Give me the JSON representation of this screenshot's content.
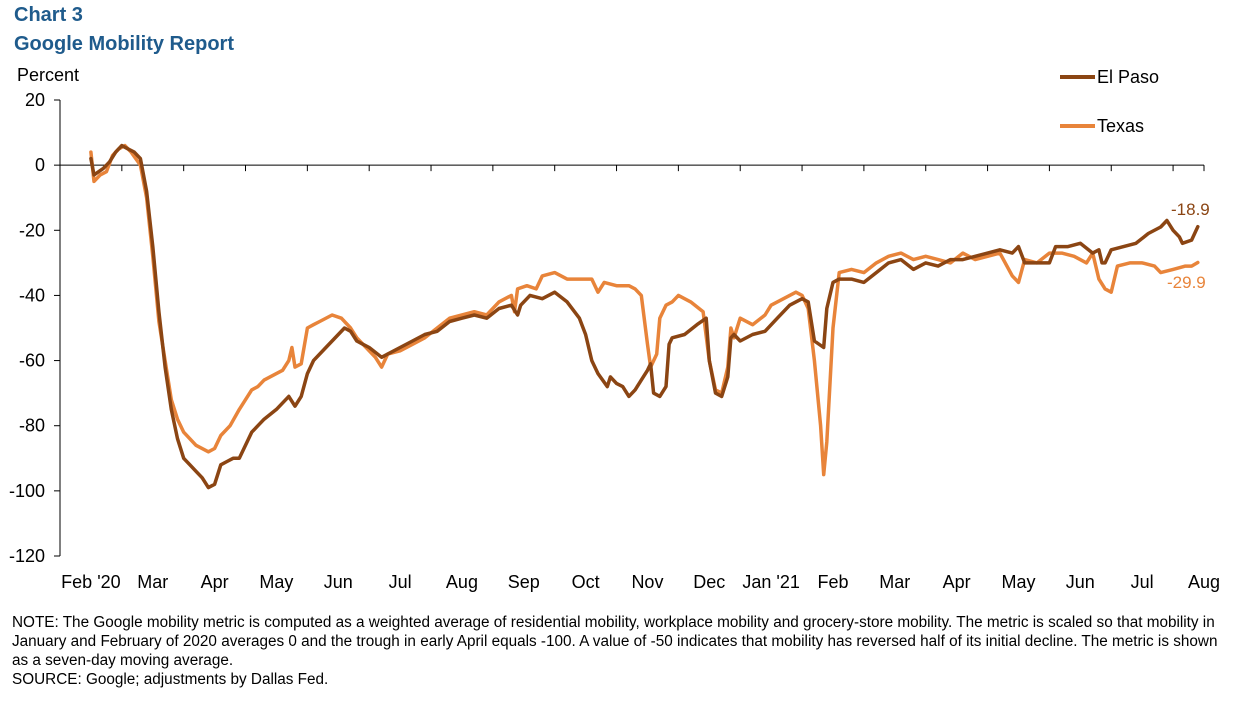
{
  "header": {
    "chart_label": "Chart 3",
    "title": "Google Mobility Report"
  },
  "footer": {
    "note": "NOTE: The Google mobility metric is computed as a weighted average of residential mobility, workplace mobility and grocery-store mobility. The metric is scaled so that mobility in January and February of 2020 averages 0 and the trough in early April equals -100. A value of -50 indicates that mobility has reversed half of its initial decline. The metric is shown as a seven-day moving average.",
    "source": "SOURCE: Google; adjustments by Dallas Fed."
  },
  "chart_data": {
    "type": "line",
    "title": "Google Mobility Report",
    "ylabel": "Percent",
    "xlabel": "",
    "ylim": [
      -120,
      20
    ],
    "yticks": [
      20,
      0,
      -20,
      -40,
      -60,
      -80,
      -100,
      -120
    ],
    "xlim": [
      0,
      18.5
    ],
    "xticks": [
      {
        "label": "Feb '20",
        "x": 0.5
      },
      {
        "label": "Mar",
        "x": 1.5
      },
      {
        "label": "Apr",
        "x": 2.5
      },
      {
        "label": "May",
        "x": 3.5
      },
      {
        "label": "Jun",
        "x": 4.5
      },
      {
        "label": "Jul",
        "x": 5.5
      },
      {
        "label": "Aug",
        "x": 6.5
      },
      {
        "label": "Sep",
        "x": 7.5
      },
      {
        "label": "Oct",
        "x": 8.5
      },
      {
        "label": "Nov",
        "x": 9.5
      },
      {
        "label": "Dec",
        "x": 10.5
      },
      {
        "label": "Jan '21",
        "x": 11.5
      },
      {
        "label": "Feb",
        "x": 12.5
      },
      {
        "label": "Mar",
        "x": 13.5
      },
      {
        "label": "Apr",
        "x": 14.5
      },
      {
        "label": "May",
        "x": 15.5
      },
      {
        "label": "Jun",
        "x": 16.5
      },
      {
        "label": "Jul",
        "x": 17.5
      },
      {
        "label": "Aug",
        "x": 18.5
      }
    ],
    "grid": false,
    "legend_position": "top-right",
    "series": [
      {
        "name": "El Paso",
        "color": "#8b4513",
        "end_label": "-18.9",
        "points": [
          [
            0.5,
            2
          ],
          [
            0.55,
            -3
          ],
          [
            0.7,
            -1
          ],
          [
            0.8,
            1
          ],
          [
            0.9,
            4
          ],
          [
            1.0,
            6
          ],
          [
            1.1,
            5
          ],
          [
            1.2,
            4
          ],
          [
            1.3,
            2
          ],
          [
            1.4,
            -8
          ],
          [
            1.5,
            -25
          ],
          [
            1.6,
            -45
          ],
          [
            1.7,
            -62
          ],
          [
            1.8,
            -75
          ],
          [
            1.9,
            -84
          ],
          [
            2.0,
            -90
          ],
          [
            2.1,
            -92
          ],
          [
            2.2,
            -94
          ],
          [
            2.3,
            -96
          ],
          [
            2.4,
            -99
          ],
          [
            2.5,
            -98
          ],
          [
            2.6,
            -92
          ],
          [
            2.7,
            -91
          ],
          [
            2.8,
            -90
          ],
          [
            2.9,
            -90
          ],
          [
            3.0,
            -86
          ],
          [
            3.1,
            -82
          ],
          [
            3.2,
            -80
          ],
          [
            3.3,
            -78
          ],
          [
            3.5,
            -75
          ],
          [
            3.7,
            -71
          ],
          [
            3.8,
            -74
          ],
          [
            3.9,
            -71
          ],
          [
            4.0,
            -64
          ],
          [
            4.1,
            -60
          ],
          [
            4.3,
            -56
          ],
          [
            4.5,
            -52
          ],
          [
            4.6,
            -50
          ],
          [
            4.7,
            -51
          ],
          [
            4.8,
            -54
          ],
          [
            4.9,
            -55
          ],
          [
            5.0,
            -56
          ],
          [
            5.2,
            -59
          ],
          [
            5.3,
            -58
          ],
          [
            5.5,
            -56
          ],
          [
            5.7,
            -54
          ],
          [
            5.9,
            -52
          ],
          [
            6.1,
            -51
          ],
          [
            6.3,
            -48
          ],
          [
            6.5,
            -47
          ],
          [
            6.7,
            -46
          ],
          [
            6.9,
            -47
          ],
          [
            7.1,
            -44
          ],
          [
            7.3,
            -43
          ],
          [
            7.4,
            -46
          ],
          [
            7.45,
            -43
          ],
          [
            7.6,
            -40
          ],
          [
            7.8,
            -41
          ],
          [
            8.0,
            -39
          ],
          [
            8.2,
            -42
          ],
          [
            8.4,
            -47
          ],
          [
            8.5,
            -52
          ],
          [
            8.6,
            -60
          ],
          [
            8.7,
            -64
          ],
          [
            8.85,
            -68
          ],
          [
            8.9,
            -65
          ],
          [
            9.0,
            -67
          ],
          [
            9.1,
            -68
          ],
          [
            9.2,
            -71
          ],
          [
            9.3,
            -69
          ],
          [
            9.4,
            -66
          ],
          [
            9.5,
            -63
          ],
          [
            9.55,
            -61
          ],
          [
            9.6,
            -70
          ],
          [
            9.7,
            -71
          ],
          [
            9.8,
            -68
          ],
          [
            9.85,
            -55
          ],
          [
            9.9,
            -53
          ],
          [
            10.1,
            -52
          ],
          [
            10.3,
            -49
          ],
          [
            10.45,
            -47
          ],
          [
            10.5,
            -60
          ],
          [
            10.6,
            -70
          ],
          [
            10.7,
            -71
          ],
          [
            10.8,
            -65
          ],
          [
            10.85,
            -53
          ],
          [
            10.9,
            -52
          ],
          [
            11.0,
            -54
          ],
          [
            11.2,
            -52
          ],
          [
            11.4,
            -51
          ],
          [
            11.6,
            -47
          ],
          [
            11.8,
            -43
          ],
          [
            12.0,
            -41
          ],
          [
            12.1,
            -42
          ],
          [
            12.2,
            -54
          ],
          [
            12.35,
            -56
          ],
          [
            12.4,
            -44
          ],
          [
            12.5,
            -36
          ],
          [
            12.6,
            -35
          ],
          [
            12.8,
            -35
          ],
          [
            13.0,
            -36
          ],
          [
            13.2,
            -33
          ],
          [
            13.4,
            -30
          ],
          [
            13.6,
            -29
          ],
          [
            13.8,
            -32
          ],
          [
            14.0,
            -30
          ],
          [
            14.2,
            -31
          ],
          [
            14.4,
            -29
          ],
          [
            14.6,
            -29
          ],
          [
            14.8,
            -28
          ],
          [
            15.0,
            -27
          ],
          [
            15.2,
            -26
          ],
          [
            15.4,
            -27
          ],
          [
            15.5,
            -25
          ],
          [
            15.6,
            -30
          ],
          [
            15.8,
            -30
          ],
          [
            16.0,
            -30
          ],
          [
            16.1,
            -25
          ],
          [
            16.3,
            -25
          ],
          [
            16.5,
            -24
          ],
          [
            16.7,
            -27
          ],
          [
            16.8,
            -26
          ],
          [
            16.85,
            -30
          ],
          [
            16.9,
            -30
          ],
          [
            17.0,
            -26
          ],
          [
            17.2,
            -25
          ],
          [
            17.4,
            -24
          ],
          [
            17.6,
            -21
          ],
          [
            17.8,
            -19
          ],
          [
            17.9,
            -17
          ],
          [
            18.0,
            -20
          ],
          [
            18.1,
            -22
          ],
          [
            18.15,
            -24
          ],
          [
            18.3,
            -23
          ],
          [
            18.4,
            -18.9
          ]
        ]
      },
      {
        "name": "Texas",
        "color": "#e8843a",
        "end_label": "-29.9",
        "points": [
          [
            0.5,
            4
          ],
          [
            0.55,
            -5
          ],
          [
            0.65,
            -3
          ],
          [
            0.75,
            -2
          ],
          [
            0.85,
            3
          ],
          [
            0.95,
            5
          ],
          [
            1.05,
            6
          ],
          [
            1.15,
            4
          ],
          [
            1.3,
            0
          ],
          [
            1.4,
            -10
          ],
          [
            1.5,
            -28
          ],
          [
            1.6,
            -48
          ],
          [
            1.7,
            -60
          ],
          [
            1.8,
            -72
          ],
          [
            1.9,
            -78
          ],
          [
            2.0,
            -82
          ],
          [
            2.2,
            -86
          ],
          [
            2.4,
            -88
          ],
          [
            2.5,
            -87
          ],
          [
            2.6,
            -83
          ],
          [
            2.75,
            -80
          ],
          [
            2.9,
            -75
          ],
          [
            3.0,
            -72
          ],
          [
            3.1,
            -69
          ],
          [
            3.2,
            -68
          ],
          [
            3.3,
            -66
          ],
          [
            3.5,
            -64
          ],
          [
            3.6,
            -63
          ],
          [
            3.7,
            -60
          ],
          [
            3.75,
            -56
          ],
          [
            3.8,
            -62
          ],
          [
            3.9,
            -61
          ],
          [
            4.0,
            -50
          ],
          [
            4.1,
            -49
          ],
          [
            4.2,
            -48
          ],
          [
            4.4,
            -46
          ],
          [
            4.55,
            -47
          ],
          [
            4.7,
            -50
          ],
          [
            4.8,
            -53
          ],
          [
            4.9,
            -55
          ],
          [
            5.1,
            -59
          ],
          [
            5.2,
            -62
          ],
          [
            5.3,
            -58
          ],
          [
            5.5,
            -57
          ],
          [
            5.7,
            -55
          ],
          [
            5.9,
            -53
          ],
          [
            6.1,
            -50
          ],
          [
            6.3,
            -47
          ],
          [
            6.5,
            -46
          ],
          [
            6.7,
            -45
          ],
          [
            6.9,
            -46
          ],
          [
            7.1,
            -42
          ],
          [
            7.3,
            -40
          ],
          [
            7.35,
            -45
          ],
          [
            7.4,
            -38
          ],
          [
            7.55,
            -37
          ],
          [
            7.7,
            -38
          ],
          [
            7.8,
            -34
          ],
          [
            8.0,
            -33
          ],
          [
            8.2,
            -35
          ],
          [
            8.4,
            -35
          ],
          [
            8.6,
            -35
          ],
          [
            8.7,
            -39
          ],
          [
            8.8,
            -36
          ],
          [
            9.0,
            -37
          ],
          [
            9.2,
            -37
          ],
          [
            9.3,
            -38
          ],
          [
            9.4,
            -40
          ],
          [
            9.5,
            -55
          ],
          [
            9.55,
            -62
          ],
          [
            9.65,
            -58
          ],
          [
            9.7,
            -47
          ],
          [
            9.8,
            -43
          ],
          [
            9.9,
            -42
          ],
          [
            10.0,
            -40
          ],
          [
            10.2,
            -42
          ],
          [
            10.4,
            -45
          ],
          [
            10.5,
            -60
          ],
          [
            10.6,
            -69
          ],
          [
            10.7,
            -70
          ],
          [
            10.8,
            -62
          ],
          [
            10.85,
            -50
          ],
          [
            10.9,
            -53
          ],
          [
            11.0,
            -47
          ],
          [
            11.2,
            -49
          ],
          [
            11.4,
            -46
          ],
          [
            11.5,
            -43
          ],
          [
            11.7,
            -41
          ],
          [
            11.9,
            -39
          ],
          [
            12.0,
            -40
          ],
          [
            12.1,
            -44
          ],
          [
            12.2,
            -60
          ],
          [
            12.3,
            -80
          ],
          [
            12.35,
            -95
          ],
          [
            12.4,
            -85
          ],
          [
            12.5,
            -50
          ],
          [
            12.6,
            -33
          ],
          [
            12.8,
            -32
          ],
          [
            13.0,
            -33
          ],
          [
            13.2,
            -30
          ],
          [
            13.4,
            -28
          ],
          [
            13.6,
            -27
          ],
          [
            13.8,
            -29
          ],
          [
            14.0,
            -28
          ],
          [
            14.2,
            -29
          ],
          [
            14.4,
            -30
          ],
          [
            14.6,
            -27
          ],
          [
            14.8,
            -29
          ],
          [
            15.0,
            -28
          ],
          [
            15.2,
            -27
          ],
          [
            15.4,
            -34
          ],
          [
            15.5,
            -36
          ],
          [
            15.6,
            -29
          ],
          [
            15.8,
            -30
          ],
          [
            16.0,
            -27
          ],
          [
            16.2,
            -27
          ],
          [
            16.4,
            -28
          ],
          [
            16.6,
            -30
          ],
          [
            16.7,
            -27
          ],
          [
            16.8,
            -35
          ],
          [
            16.9,
            -38
          ],
          [
            17.0,
            -39
          ],
          [
            17.1,
            -31
          ],
          [
            17.3,
            -30
          ],
          [
            17.5,
            -30
          ],
          [
            17.7,
            -31
          ],
          [
            17.8,
            -33
          ],
          [
            18.0,
            -32
          ],
          [
            18.2,
            -31
          ],
          [
            18.3,
            -31
          ],
          [
            18.4,
            -29.9
          ]
        ]
      }
    ]
  }
}
